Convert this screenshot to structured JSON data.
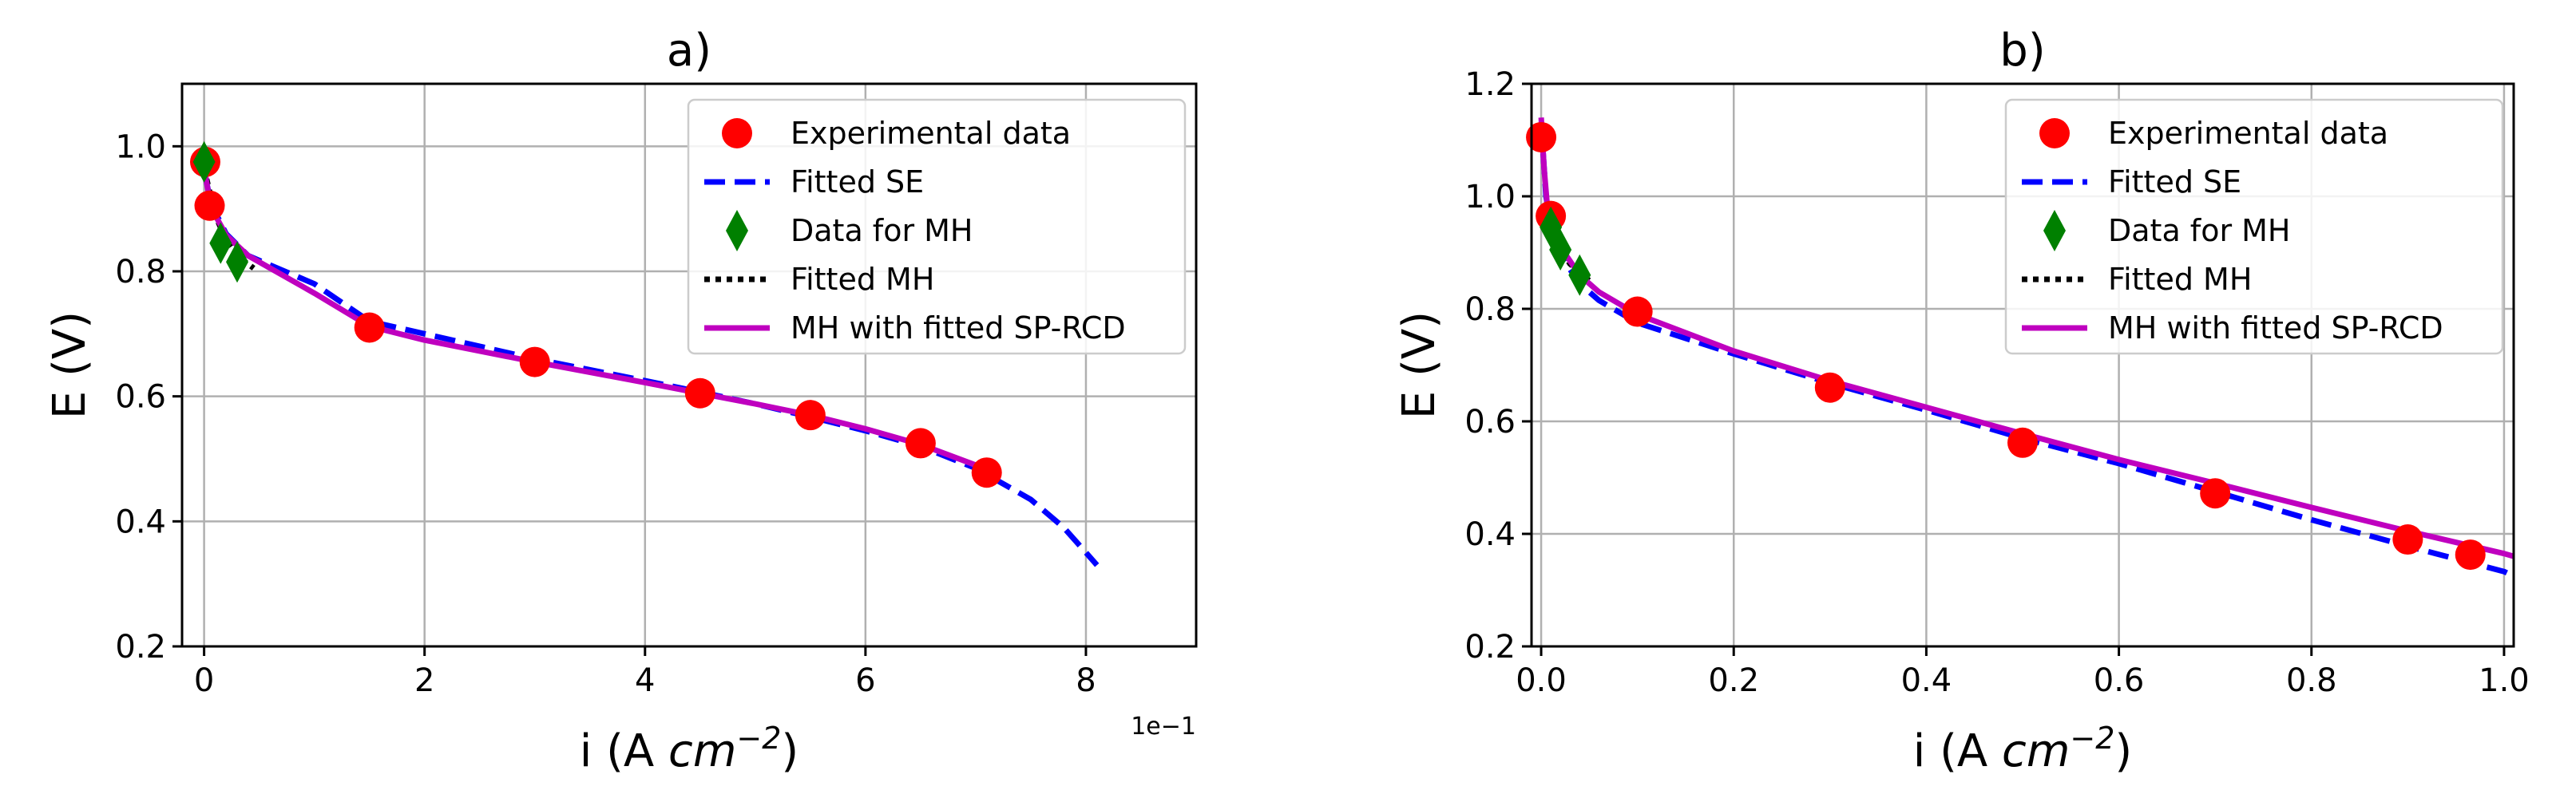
{
  "chart_data": [
    {
      "type": "line",
      "title": "a)",
      "xlabel": "i (A cm⁻²)",
      "ylabel": "E (V)",
      "x_exponent_label": "1e−1",
      "xlim": [
        -0.2,
        9.0
      ],
      "ylim": [
        0.2,
        1.1
      ],
      "xticks": [
        0,
        2,
        4,
        6,
        8
      ],
      "xtick_labels": [
        "0",
        "2",
        "4",
        "6",
        "8"
      ],
      "yticks": [
        0.2,
        0.4,
        0.6,
        0.8,
        1.0
      ],
      "ytick_labels": [
        "0.2",
        "0.4",
        "0.6",
        "0.8",
        "1.0"
      ],
      "grid": true,
      "legend_position": "top-right",
      "series": [
        {
          "name": "Experimental data",
          "kind": "markers",
          "marker": "circle",
          "color": "#ff0000",
          "x": [
            0.01,
            0.05,
            1.5,
            3.0,
            4.5,
            5.5,
            6.5,
            7.1
          ],
          "y": [
            0.975,
            0.905,
            0.71,
            0.655,
            0.605,
            0.57,
            0.525,
            0.478
          ]
        },
        {
          "name": "Fitted SE",
          "kind": "line",
          "style": "dashed",
          "color": "#0000ff",
          "x": [
            0.0,
            0.05,
            0.1,
            0.2,
            0.4,
            0.6,
            1.0,
            1.5,
            2.0,
            3.0,
            4.0,
            4.5,
            5.0,
            5.5,
            6.0,
            6.5,
            7.0,
            7.5,
            7.8,
            8.0,
            8.1
          ],
          "y": [
            0.96,
            0.92,
            0.895,
            0.86,
            0.825,
            0.81,
            0.78,
            0.72,
            0.7,
            0.66,
            0.625,
            0.607,
            0.588,
            0.567,
            0.545,
            0.52,
            0.485,
            0.435,
            0.39,
            0.35,
            0.33
          ]
        },
        {
          "name": "Data for MH",
          "kind": "markers",
          "marker": "diamond",
          "color": "#008000",
          "x": [
            0.0,
            0.15,
            0.3
          ],
          "y": [
            0.975,
            0.845,
            0.815
          ]
        },
        {
          "name": "Fitted MH",
          "kind": "line",
          "style": "dotted",
          "color": "#000000",
          "x": [
            0.0,
            0.1,
            0.2,
            0.3,
            0.45
          ],
          "y": [
            0.965,
            0.89,
            0.85,
            0.825,
            0.805
          ]
        },
        {
          "name": "MH with fitted SP-RCD",
          "kind": "line",
          "style": "solid",
          "color": "#bf00bf",
          "x": [
            0.0,
            0.05,
            0.1,
            0.2,
            0.4,
            0.6,
            1.0,
            1.5,
            2.0,
            3.0,
            4.0,
            4.5,
            5.0,
            5.5,
            6.0,
            6.5,
            7.0,
            7.1
          ],
          "y": [
            0.965,
            0.915,
            0.89,
            0.858,
            0.825,
            0.805,
            0.765,
            0.712,
            0.69,
            0.655,
            0.622,
            0.605,
            0.588,
            0.57,
            0.548,
            0.523,
            0.49,
            0.478
          ]
        }
      ]
    },
    {
      "type": "line",
      "title": "b)",
      "xlabel": "i (A cm⁻²)",
      "ylabel": "E (V)",
      "xlim": [
        -0.01,
        1.01
      ],
      "ylim": [
        0.2,
        1.2
      ],
      "xticks": [
        0.0,
        0.2,
        0.4,
        0.6,
        0.8,
        1.0
      ],
      "xtick_labels": [
        "0.0",
        "0.2",
        "0.4",
        "0.6",
        "0.8",
        "1.0"
      ],
      "yticks": [
        0.2,
        0.4,
        0.6,
        0.8,
        1.0,
        1.2
      ],
      "ytick_labels": [
        "0.2",
        "0.4",
        "0.6",
        "0.8",
        "1.0",
        "1.2"
      ],
      "grid": true,
      "legend_position": "top-right",
      "series": [
        {
          "name": "Experimental data",
          "kind": "markers",
          "marker": "circle",
          "color": "#ff0000",
          "x": [
            0.0,
            0.01,
            0.1,
            0.3,
            0.5,
            0.7,
            0.9,
            0.965
          ],
          "y": [
            1.105,
            0.965,
            0.795,
            0.66,
            0.562,
            0.472,
            0.39,
            0.363
          ]
        },
        {
          "name": "Fitted SE",
          "kind": "line",
          "style": "dashed",
          "color": "#0000ff",
          "x": [
            0.0,
            0.005,
            0.01,
            0.02,
            0.04,
            0.06,
            0.1,
            0.2,
            0.3,
            0.4,
            0.5,
            0.6,
            0.7,
            0.8,
            0.9,
            1.0,
            1.01
          ],
          "y": [
            1.13,
            1.0,
            0.95,
            0.895,
            0.845,
            0.815,
            0.775,
            0.72,
            0.668,
            0.62,
            0.57,
            0.525,
            0.475,
            0.425,
            0.378,
            0.333,
            0.325
          ]
        },
        {
          "name": "Data for MH",
          "kind": "markers",
          "marker": "diamond",
          "color": "#008000",
          "x": [
            0.01,
            0.02,
            0.04
          ],
          "y": [
            0.945,
            0.905,
            0.86
          ]
        },
        {
          "name": "Fitted MH",
          "kind": "line",
          "style": "dotted",
          "color": "#000000",
          "x": [
            0.0,
            0.01,
            0.02,
            0.03,
            0.05
          ],
          "y": [
            0.97,
            0.945,
            0.905,
            0.88,
            0.85
          ]
        },
        {
          "name": "MH with fitted SP-RCD",
          "kind": "line",
          "style": "solid",
          "color": "#bf00bf",
          "x": [
            0.0,
            0.003,
            0.006,
            0.01,
            0.02,
            0.04,
            0.06,
            0.1,
            0.2,
            0.3,
            0.4,
            0.5,
            0.6,
            0.7,
            0.8,
            0.9,
            1.0,
            1.01
          ],
          "y": [
            1.14,
            1.05,
            0.99,
            0.96,
            0.91,
            0.86,
            0.83,
            0.79,
            0.725,
            0.672,
            0.625,
            0.578,
            0.532,
            0.49,
            0.447,
            0.405,
            0.365,
            0.36
          ]
        }
      ]
    }
  ]
}
